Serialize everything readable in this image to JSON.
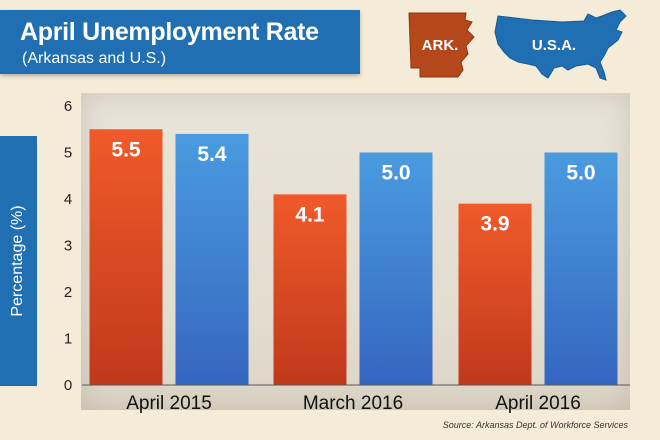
{
  "chart_data": {
    "type": "bar",
    "title": "April Unemployment Rate",
    "subtitle": "(Arkansas and U.S.)",
    "ylabel": "Percentage (%)",
    "xlabel": "",
    "categories": [
      "April 2015",
      "March 2016",
      "April 2016"
    ],
    "series": [
      {
        "name": "ARK.",
        "values": [
          5.5,
          4.1,
          3.9
        ],
        "labels": [
          "5.5",
          "4.1",
          "3.9"
        ],
        "color": "#e2502a"
      },
      {
        "name": "U.S.A.",
        "values": [
          5.4,
          5.0,
          5.0
        ],
        "labels": [
          "5.4",
          "5.0",
          "5.0"
        ],
        "color": "#3f8ed8"
      }
    ],
    "ylim": [
      0,
      6
    ],
    "yticks": [
      "0",
      "1",
      "2",
      "3",
      "4",
      "5",
      "6"
    ],
    "grid": false,
    "legend": "top-right",
    "source": "Source: Arkansas Dept. of Workforce Services"
  },
  "colors": {
    "accent": "#1f6fb2",
    "arkansas": "#b5481a",
    "usa": "#1f6fb2",
    "background": "#f4ecd8"
  },
  "icons": [
    "arkansas-map-icon",
    "usa-map-icon"
  ]
}
